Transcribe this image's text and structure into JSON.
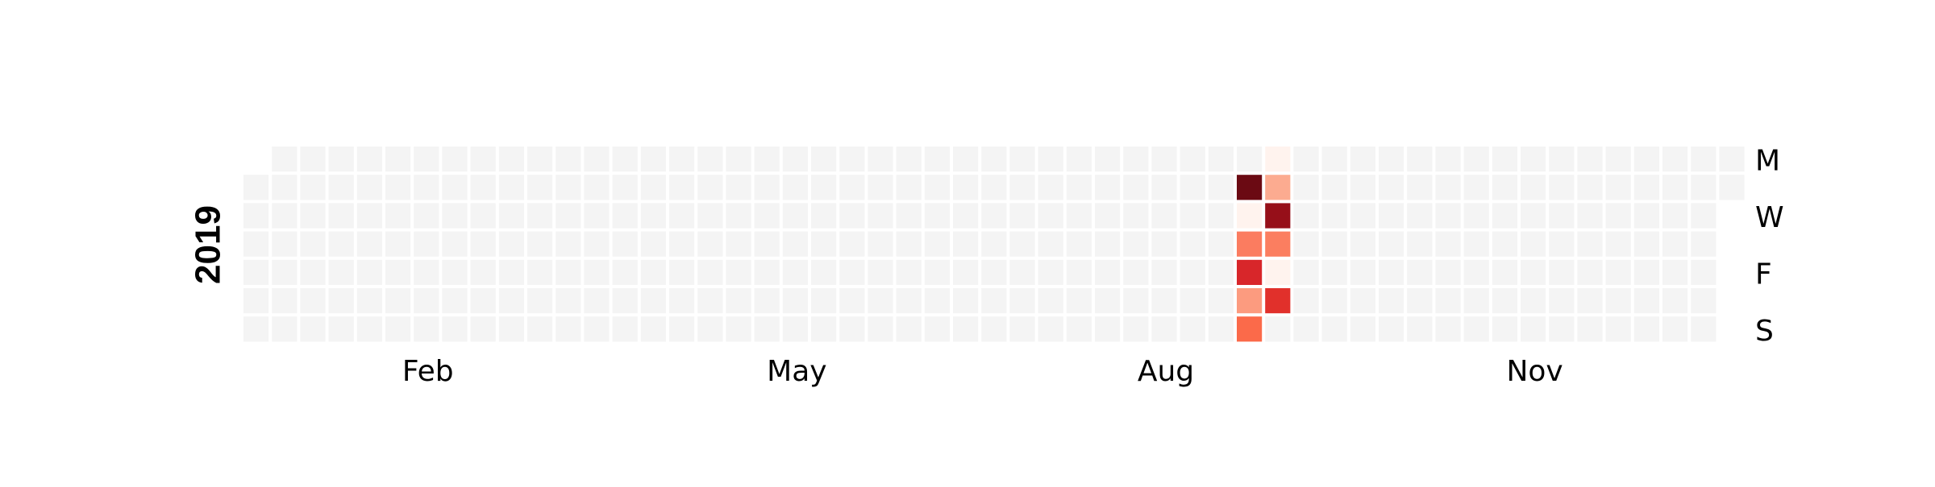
{
  "chart_data": {
    "type": "heatmap",
    "title": "",
    "year": "2019",
    "month_labels": [
      {
        "label": "Feb",
        "week": 6.5
      },
      {
        "label": "May",
        "week": 19.5
      },
      {
        "label": "Aug",
        "week": 32.5
      },
      {
        "label": "Nov",
        "week": 45.5
      }
    ],
    "day_labels": [
      {
        "label": "M",
        "day": 0
      },
      {
        "label": "W",
        "day": 2
      },
      {
        "label": "F",
        "day": 4
      },
      {
        "label": "S",
        "day": 6
      }
    ],
    "first_weekday": 1,
    "num_days": 365,
    "empty_color": "#f4f4f4",
    "colormap": "Reds",
    "active_cells": [
      {
        "week": 35,
        "day": 1,
        "color": "#6b0a13"
      },
      {
        "week": 35,
        "day": 2,
        "color": "#fff3ee"
      },
      {
        "week": 35,
        "day": 3,
        "color": "#fb7c60"
      },
      {
        "week": 35,
        "day": 4,
        "color": "#d8262a"
      },
      {
        "week": 35,
        "day": 5,
        "color": "#fc9b7f"
      },
      {
        "week": 35,
        "day": 6,
        "color": "#fb6a4a"
      },
      {
        "week": 36,
        "day": 0,
        "color": "#fff3ee"
      },
      {
        "week": 36,
        "day": 1,
        "color": "#fcab90"
      },
      {
        "week": 36,
        "day": 2,
        "color": "#960f19"
      },
      {
        "week": 36,
        "day": 3,
        "color": "#fb7e60"
      },
      {
        "week": 36,
        "day": 4,
        "color": "#fff3ee"
      },
      {
        "week": 36,
        "day": 5,
        "color": "#e1302b"
      }
    ]
  }
}
